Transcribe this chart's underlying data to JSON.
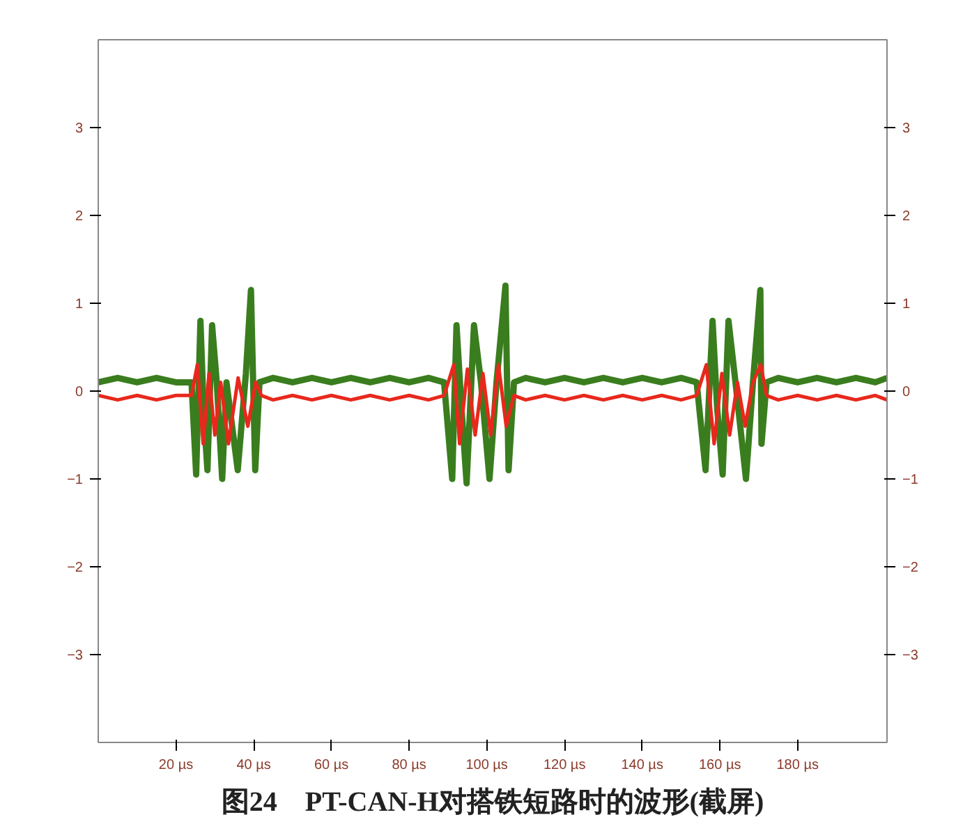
{
  "chart_data": {
    "type": "line",
    "title": "图24　PT-CAN-H对搭铁短路时的波形(截屏)",
    "xlim": [
      0,
      203
    ],
    "ylim": [
      -4,
      4
    ],
    "y2lim": [
      -4,
      4
    ],
    "xticks": [
      {
        "value": 20,
        "label": "20 µs"
      },
      {
        "value": 40,
        "label": "40 µs"
      },
      {
        "value": 60,
        "label": "60 µs"
      },
      {
        "value": 80,
        "label": "80 µs"
      },
      {
        "value": 100,
        "label": "100 µs"
      },
      {
        "value": 120,
        "label": "120 µs"
      },
      {
        "value": 140,
        "label": "140 µs"
      },
      {
        "value": 160,
        "label": "160 µs"
      },
      {
        "value": 180,
        "label": "180 µs"
      }
    ],
    "yticks": [
      -3,
      -2,
      -1,
      0,
      1,
      2,
      3
    ],
    "y2ticks": [
      -3,
      -2,
      -1,
      0,
      1,
      2,
      3
    ],
    "grid": false,
    "line_style": "solid",
    "series": [
      {
        "color": "#3a7d1e",
        "x": [
          0,
          5,
          10,
          15,
          20,
          24,
          25.2,
          26.3,
          27.2,
          28.1,
          29.3,
          30.5,
          31.9,
          33,
          35.9,
          38,
          39.3,
          40.4,
          41.5,
          45,
          50,
          55,
          60,
          65,
          70,
          75,
          80,
          85,
          89,
          91.1,
          92.2,
          93.5,
          94.8,
          96.7,
          98.5,
          100.7,
          102.5,
          104.8,
          105.6,
          107,
          110,
          115,
          120,
          125,
          130,
          135,
          140,
          145,
          150,
          154,
          156.3,
          158.1,
          159.3,
          160.7,
          162.2,
          164,
          166.7,
          168.5,
          170.4,
          170.7,
          172,
          175,
          180,
          185,
          190,
          195,
          200,
          203
        ],
        "values": [
          0.1,
          0.15,
          0.1,
          0.15,
          0.1,
          0.1,
          -0.95,
          0.8,
          -0.3,
          -0.9,
          0.75,
          0.1,
          -1.0,
          0.1,
          -0.9,
          0.2,
          1.15,
          -0.9,
          0.1,
          0.15,
          0.1,
          0.15,
          0.1,
          0.15,
          0.1,
          0.15,
          0.1,
          0.15,
          0.1,
          -1.0,
          0.75,
          -0.2,
          -1.05,
          0.75,
          0.1,
          -1.0,
          0.1,
          1.2,
          -0.9,
          0.1,
          0.15,
          0.1,
          0.15,
          0.1,
          0.15,
          0.1,
          0.15,
          0.1,
          0.15,
          0.1,
          -0.9,
          0.8,
          -0.2,
          -0.95,
          0.8,
          0.1,
          -1.0,
          0.1,
          1.15,
          -0.6,
          0.1,
          0.15,
          0.1,
          0.15,
          0.1,
          0.15,
          0.1,
          0.15
        ]
      },
      {
        "color": "#e8281c",
        "x": [
          0,
          5,
          10,
          15,
          20,
          24,
          25.5,
          27,
          28.5,
          30,
          31.5,
          33.5,
          36,
          38.5,
          40.5,
          42,
          45,
          50,
          55,
          60,
          65,
          70,
          75,
          80,
          85,
          89,
          91.5,
          93,
          95,
          97,
          99,
          101,
          103,
          105,
          107,
          110,
          115,
          120,
          125,
          130,
          135,
          140,
          145,
          150,
          154,
          156.5,
          158.5,
          160.5,
          162.5,
          164.5,
          166.5,
          168.5,
          170.5,
          172,
          175,
          180,
          185,
          190,
          195,
          200,
          203
        ],
        "values": [
          -0.05,
          -0.1,
          -0.05,
          -0.1,
          -0.05,
          -0.05,
          0.3,
          -0.6,
          0.2,
          -0.5,
          0.1,
          -0.6,
          0.15,
          -0.4,
          0.1,
          -0.05,
          -0.1,
          -0.05,
          -0.1,
          -0.05,
          -0.1,
          -0.05,
          -0.1,
          -0.05,
          -0.1,
          -0.05,
          0.3,
          -0.6,
          0.25,
          -0.5,
          0.2,
          -0.5,
          0.3,
          -0.4,
          -0.05,
          -0.1,
          -0.05,
          -0.1,
          -0.05,
          -0.1,
          -0.05,
          -0.1,
          -0.05,
          -0.1,
          -0.05,
          0.3,
          -0.6,
          0.2,
          -0.5,
          0.1,
          -0.4,
          0.1,
          0.3,
          -0.05,
          -0.1,
          -0.05,
          -0.1,
          -0.05,
          -0.1,
          -0.05,
          -0.1
        ]
      }
    ]
  }
}
